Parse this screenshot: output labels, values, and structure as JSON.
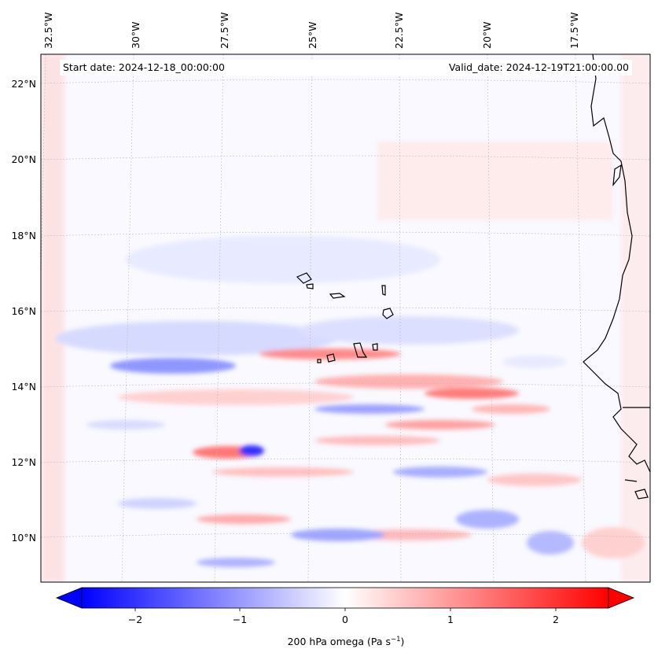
{
  "header": {
    "start_date": "Start date: 2024-12-18_00:00:00",
    "valid_date": "Valid_date: 2024-12-19T21:00:00.00"
  },
  "longitude_labels": [
    "32.5°W",
    "30°W",
    "27.5°W",
    "25°W",
    "22.5°W",
    "20°W",
    "17.5°W"
  ],
  "latitude_labels": [
    "22°N",
    "20°N",
    "18°N",
    "16°N",
    "14°N",
    "12°N",
    "10°N"
  ],
  "colorbar": {
    "tick_labels": [
      "−2",
      "−1",
      "0",
      "1",
      "2"
    ],
    "label_prefix": "200 hPa omega (Pa s",
    "label_exponent": "−1",
    "label_suffix": ")",
    "colors": {
      "negative": "#0000ff",
      "zero": "#ffffff",
      "positive": "#ff0000"
    },
    "range": [
      -2.5,
      2.5
    ]
  },
  "map": {
    "projection": "lambert conformal",
    "coastline_color": "#000000",
    "gridline_style": "dotted grey"
  }
}
